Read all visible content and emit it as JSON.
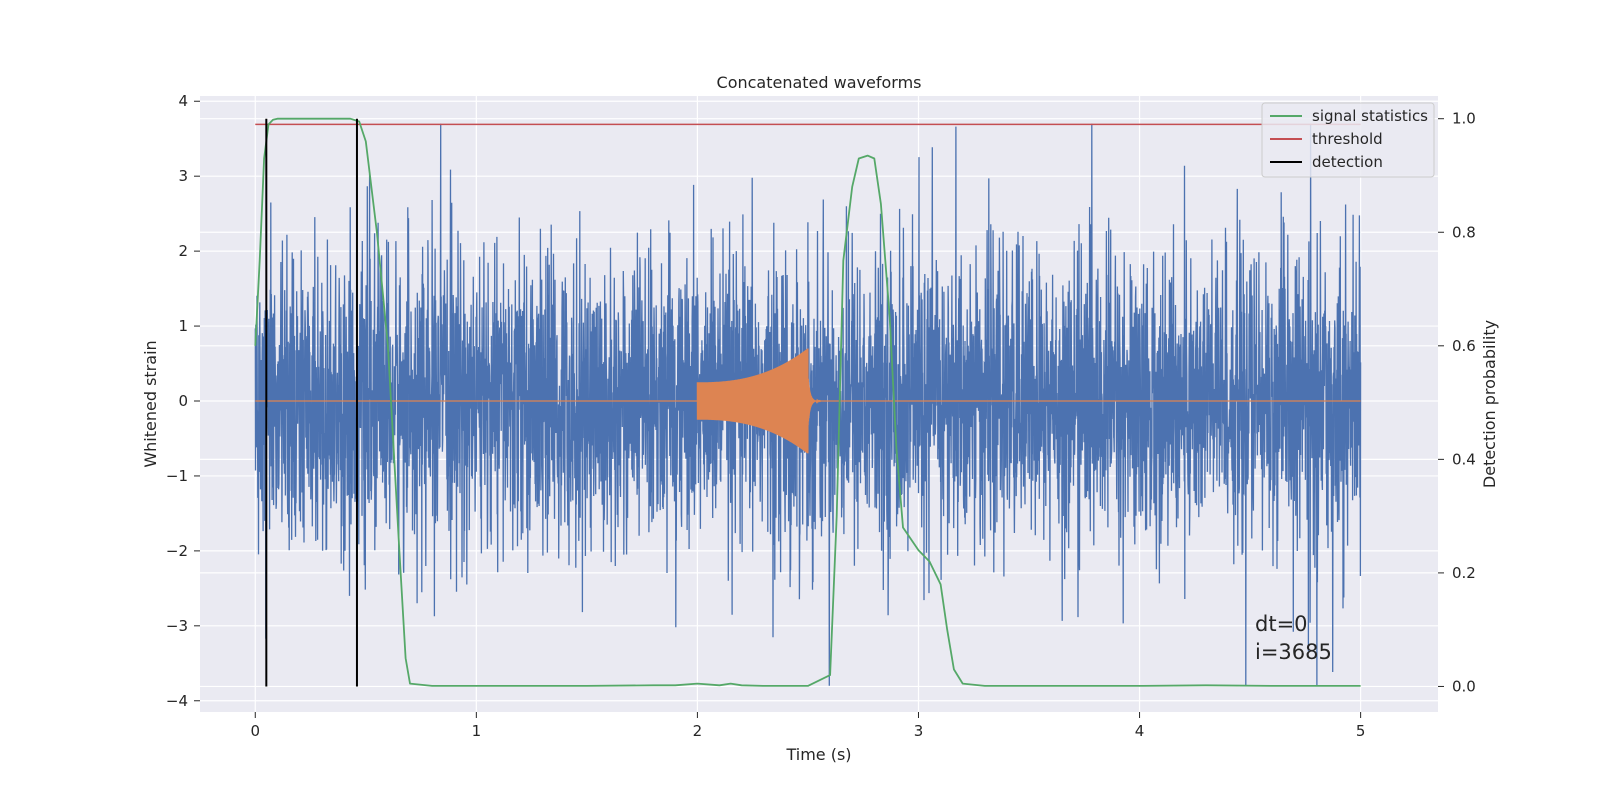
{
  "chart_data": {
    "type": "line",
    "title": "Concatenated waveforms",
    "xlabel": "Time (s)",
    "ylabel_left": "Whitened strain",
    "ylabel_right": "Detection probability",
    "xlim": [
      -0.25,
      5.35
    ],
    "ylim_left": [
      -4.15,
      4.07
    ],
    "ylim_right": [
      -0.045,
      1.04
    ],
    "x_ticks": [
      "0",
      "1",
      "2",
      "3",
      "4",
      "5"
    ],
    "y_ticks_left": [
      "4",
      "3",
      "2",
      "1",
      "0",
      "−1",
      "−2",
      "−3",
      "−4"
    ],
    "y_ticks_right": [
      "1.0",
      "0.8",
      "0.6",
      "0.4",
      "0.2",
      "0.0"
    ],
    "grid": true,
    "legend_position": "top-right",
    "series": [
      {
        "name": "",
        "axis": "left",
        "color": "#4c72b0",
        "description": "whitened strain noise, time 0 to 5 s, amplitude mostly within -2.5 to 2.5 with peaks near 3.7",
        "x_range": [
          0,
          5
        ],
        "peaks_max": 3.7,
        "peaks_min": -3.8
      },
      {
        "name": "",
        "axis": "left",
        "color": "#dd8452",
        "chirp": {
          "x_start": 2.0,
          "x_end": 2.5,
          "amp_start": 0.25,
          "amp_end": 0.7
        },
        "x_range": [
          0,
          5
        ]
      },
      {
        "name": "signal statistics",
        "axis": "right",
        "color": "#55a868",
        "x": [
          0.0,
          0.02,
          0.04,
          0.06,
          0.08,
          0.1,
          0.15,
          0.3,
          0.43,
          0.47,
          0.5,
          0.55,
          0.6,
          0.65,
          0.68,
          0.7,
          0.8,
          1.5,
          1.8,
          1.9,
          2.0,
          2.1,
          2.15,
          2.2,
          2.3,
          2.5,
          2.6,
          2.63,
          2.66,
          2.7,
          2.73,
          2.77,
          2.8,
          2.83,
          2.87,
          2.9,
          2.93,
          3.0,
          3.05,
          3.1,
          3.13,
          3.16,
          3.2,
          3.3,
          4.0,
          4.3,
          4.6,
          5.0
        ],
        "y": [
          0.6,
          0.75,
          0.93,
          0.99,
          0.998,
          1.0,
          1.0,
          1.0,
          1.0,
          0.995,
          0.96,
          0.8,
          0.6,
          0.25,
          0.05,
          0.005,
          0.001,
          0.001,
          0.002,
          0.002,
          0.005,
          0.002,
          0.005,
          0.002,
          0.001,
          0.001,
          0.02,
          0.3,
          0.75,
          0.88,
          0.93,
          0.935,
          0.93,
          0.85,
          0.65,
          0.42,
          0.28,
          0.24,
          0.22,
          0.18,
          0.1,
          0.03,
          0.005,
          0.001,
          0.001,
          0.002,
          0.001,
          0.001
        ]
      },
      {
        "name": "threshold",
        "axis": "right",
        "color": "#c44e52",
        "value": 0.99,
        "x_range": [
          0,
          5
        ]
      },
      {
        "name": "detection",
        "axis": "right",
        "color": "#000000",
        "x": [
          0.05,
          0.46
        ],
        "y_range": [
          0,
          1
        ]
      }
    ],
    "annotations": [
      "dt=0",
      "i=3685"
    ]
  }
}
